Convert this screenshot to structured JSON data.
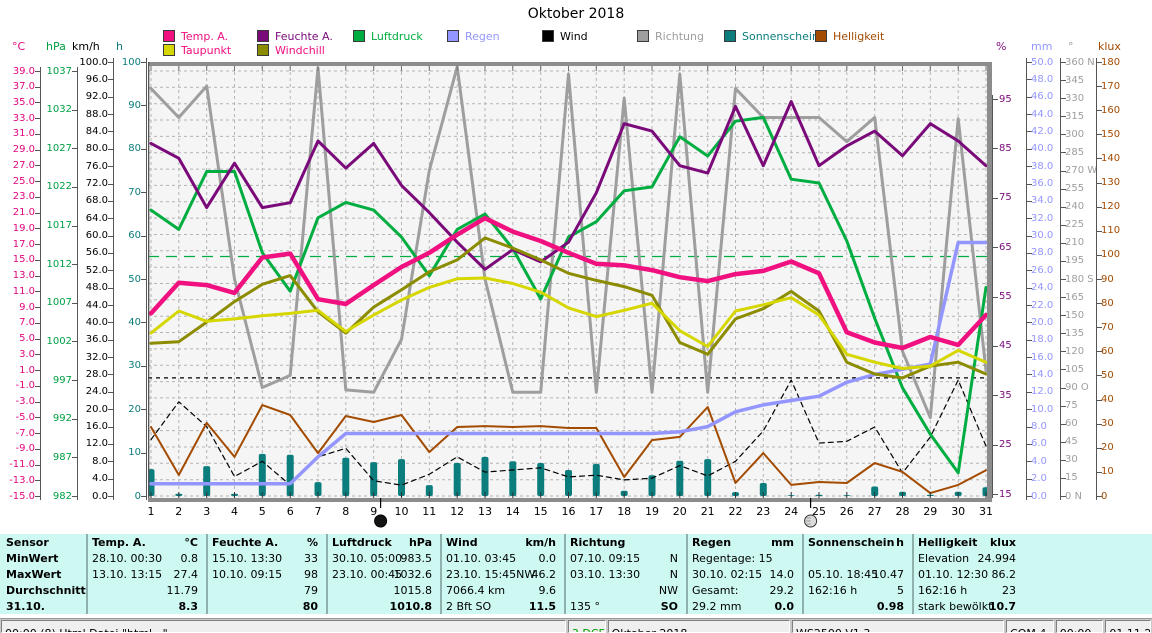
{
  "title": "Oktober 2018",
  "legend": {
    "rows": [
      [
        {
          "label": "Temp. A.",
          "color": "#f01080",
          "label_color": "#f01080"
        },
        {
          "label": "Feuchte A.",
          "color": "#7a0a7a",
          "label_color": "#7a0a7a"
        },
        {
          "label": "Luftdruck",
          "color": "#00ad41",
          "label_color": "#00ad41"
        },
        {
          "label": "Regen",
          "color": "#9496ff",
          "label_color": "#9496ff"
        },
        {
          "label": "Wind",
          "color": "#000000",
          "label_color": "#000000"
        },
        {
          "label": "Richtung",
          "color": "#9e9e9e",
          "label_color": "#9e9e9e"
        },
        {
          "label": "Sonnenschein",
          "color": "#0b7d7d",
          "label_color": "#0b7d7d"
        },
        {
          "label": "Helligkeit",
          "color": "#a34b00",
          "label_color": "#a34b00"
        }
      ],
      [
        {
          "label": "Taupunkt",
          "color": "#d6d600",
          "label_color": "#f01080"
        },
        {
          "label": "Windchill",
          "color": "#8c8c00",
          "label_color": "#f01080"
        }
      ]
    ]
  },
  "axes": {
    "left": [
      {
        "id": "C",
        "unit": "°C",
        "color": "#e0077e",
        "ticks": [
          "39.0",
          "37.0",
          "35.0",
          "33.0",
          "31.0",
          "29.0",
          "27.0",
          "25.0",
          "23.0",
          "21.0",
          "19.0",
          "17.0",
          "15.0",
          "13.0",
          "11.0",
          "9.0",
          "7.0",
          "5.0",
          "3.0",
          "1.0",
          "-1.0",
          "-3.0",
          "-5.0",
          "-7.0",
          "-9.0",
          "-11.0",
          "-13.0",
          "-15.0"
        ]
      },
      {
        "id": "hPa",
        "unit": "hPa",
        "color": "#00a044",
        "ticks": [
          "1037",
          "1032",
          "1027",
          "1022",
          "1017",
          "1012",
          "1007",
          "1002",
          "997",
          "992",
          "987",
          "982"
        ]
      },
      {
        "id": "kmh",
        "unit": "km/h",
        "color": "#000000",
        "ticks": [
          "100.0",
          "96.0",
          "92.0",
          "88.0",
          "84.0",
          "80.0",
          "76.0",
          "72.0",
          "68.0",
          "64.0",
          "60.0",
          "56.0",
          "52.0",
          "48.0",
          "44.0",
          "40.0",
          "36.0",
          "32.0",
          "28.0",
          "24.0",
          "20.0",
          "16.0",
          "12.0",
          "8.0",
          "4.0",
          "0.0"
        ]
      },
      {
        "id": "h",
        "unit": "h",
        "color": "#0b7d7d",
        "ticks": [
          "100",
          "90",
          "80",
          "70",
          "60",
          "50",
          "40",
          "30",
          "20",
          "10",
          "0"
        ]
      }
    ],
    "right": [
      {
        "id": "pct",
        "unit": "%",
        "color": "#7a0a7a",
        "ticks": [
          "95",
          "85",
          "75",
          "65",
          "55",
          "45",
          "35",
          "25",
          "15"
        ]
      },
      {
        "id": "mm",
        "unit": "mm",
        "color": "#9496ff",
        "ticks": [
          "50.0",
          "48.0",
          "46.0",
          "44.0",
          "42.0",
          "40.0",
          "38.0",
          "36.0",
          "34.0",
          "32.0",
          "30.0",
          "28.0",
          "26.0",
          "24.0",
          "22.0",
          "20.0",
          "18.0",
          "16.0",
          "14.0",
          "12.0",
          "10.0",
          "8.0",
          "6.0",
          "4.0",
          "2.0",
          "0.0"
        ]
      },
      {
        "id": "deg",
        "unit": "°",
        "color": "#9e9e9e",
        "ticks": [
          "360 N",
          "345",
          "330",
          "315",
          "300",
          "285",
          "270 W",
          "255",
          "240",
          "225",
          "210",
          "195",
          "180 S",
          "165",
          "150",
          "135",
          "120",
          "105",
          "90 O",
          "75",
          "60",
          "45",
          "30",
          "15",
          "0 N"
        ]
      },
      {
        "id": "klux",
        "unit": "klux",
        "color": "#a34b00",
        "ticks": [
          "180",
          "170",
          "160",
          "150",
          "140",
          "130",
          "120",
          "110",
          "100",
          "90",
          "80",
          "70",
          "60",
          "50",
          "40",
          "30",
          "20",
          "10",
          "0"
        ]
      }
    ]
  },
  "chart_data": {
    "type": "line",
    "title": "Oktober 2018",
    "x_labels": [
      "1",
      "2",
      "3",
      "4",
      "5",
      "6",
      "7",
      "8",
      "9",
      "10",
      "11",
      "12",
      "13",
      "14",
      "15",
      "16",
      "17",
      "18",
      "19",
      "20",
      "21",
      "22",
      "23",
      "24",
      "25",
      "26",
      "27",
      "28",
      "29",
      "30",
      "31"
    ],
    "axes_ranges": {
      "C": {
        "min": -15,
        "max": 39
      },
      "hPa": {
        "min": 982,
        "max": 1037
      },
      "kmh": {
        "min": 0,
        "max": 100
      },
      "h": {
        "min": 0,
        "max": 100
      },
      "pct": {
        "min": 15,
        "max": 95
      },
      "mm": {
        "min": 0,
        "max": 50
      },
      "deg": {
        "min": 0,
        "max": 360
      },
      "klux": {
        "min": 0,
        "max": 180
      }
    },
    "bars": {
      "name": "Sonnenschein",
      "axis": "h",
      "color": "#0b7d7d",
      "values": [
        6.2,
        0.5,
        6.9,
        0.5,
        9.7,
        9.5,
        3.2,
        8.8,
        7.8,
        8.5,
        2.5,
        7.6,
        9,
        8,
        7.6,
        6,
        7.4,
        1.2,
        4.8,
        8.1,
        8.5,
        0.9,
        3,
        0.2,
        0.3,
        0.2,
        2.2,
        1,
        0.3,
        1,
        2
      ]
    },
    "series": [
      {
        "name": "Richtung",
        "axis": "deg",
        "color": "#9e9e9e",
        "width": 3,
        "values": [
          338,
          314,
          340,
          180,
          90,
          100,
          355,
          88,
          86,
          130,
          270,
          356,
          180,
          86,
          86,
          350,
          86,
          330,
          86,
          350,
          86,
          338,
          314,
          314,
          314,
          294,
          314,
          120,
          65,
          313,
          104
        ]
      },
      {
        "name": "Wind",
        "axis": "kmh",
        "color": "#000000",
        "width": 1.2,
        "dash": "5 4",
        "values": [
          13,
          21.7,
          16,
          4.5,
          8,
          2.5,
          9,
          11,
          3.5,
          2.5,
          5,
          9,
          5.5,
          6,
          6.5,
          4.4,
          4.8,
          3.7,
          4.1,
          7,
          4.6,
          8,
          15,
          26.7,
          12.2,
          12.6,
          15.9,
          5.3,
          13.6,
          26.7,
          11.5
        ]
      },
      {
        "name": "Helligkeit",
        "axis": "klux",
        "color": "#a34b00",
        "width": 2,
        "values": [
          28.6,
          8.7,
          30.3,
          16.2,
          37.7,
          33.6,
          17.8,
          33.2,
          30.7,
          33.6,
          18.2,
          28.6,
          29,
          28.6,
          29,
          28.2,
          28.2,
          7.9,
          23.2,
          24.5,
          36.9,
          5.4,
          17.8,
          4.6,
          5.8,
          5.4,
          13.7,
          10,
          1.2,
          4.6,
          10.7
        ]
      },
      {
        "name": "Luftdruck",
        "axis": "hPa",
        "color": "#00ad41",
        "width": 3,
        "values": [
          1019,
          1016.5,
          1024,
          1024,
          1013.5,
          1008.5,
          1018,
          1020,
          1019,
          1015.5,
          1010.5,
          1016.5,
          1018.5,
          1014,
          1007.5,
          1015.5,
          1017.5,
          1021.5,
          1022,
          1028.5,
          1026,
          1030.5,
          1031,
          1023,
          1022.5,
          1015,
          1005,
          996,
          990,
          985,
          1009
        ]
      },
      {
        "name": "Feuchte A.",
        "axis": "pct",
        "color": "#7a0a7a",
        "width": 3,
        "values": [
          86,
          83,
          73,
          82,
          73,
          74,
          86.5,
          81,
          86,
          77.5,
          72,
          66,
          60.5,
          64.5,
          62,
          66,
          76,
          90,
          88.5,
          81.5,
          80,
          93.5,
          81.5,
          94.5,
          81.5,
          85.5,
          88.5,
          83.5,
          90,
          86.5,
          81.5
        ]
      },
      {
        "name": "Regen",
        "axis": "mm",
        "color": "#9496ff",
        "width": 3.5,
        "values": [
          1.4,
          1.4,
          1.4,
          1.4,
          1.4,
          1.4,
          4.5,
          7.2,
          7.2,
          7.2,
          7.2,
          7.2,
          7.2,
          7.2,
          7.2,
          7.2,
          7.2,
          7.2,
          7.2,
          7.4,
          8,
          9.7,
          10.5,
          11,
          11.5,
          13.1,
          14,
          14.6,
          15.2,
          29.2,
          29.2
        ]
      },
      {
        "name": "Windchill",
        "axis": "C",
        "color": "#8c8c00",
        "width": 3,
        "values": [
          4.4,
          4.6,
          7.1,
          9.7,
          11.9,
          13,
          8.4,
          5.7,
          9,
          11.2,
          13.5,
          15,
          17.8,
          16.5,
          15,
          13.3,
          12.4,
          11.6,
          10.5,
          4.5,
          3,
          7.5,
          8.8,
          11,
          8.5,
          2,
          0.5,
          0,
          1.5,
          2,
          0.5
        ]
      },
      {
        "name": "Taupunkt",
        "axis": "C",
        "color": "#d6d600",
        "width": 3,
        "values": [
          5.7,
          8.5,
          7.2,
          7.5,
          7.9,
          8.2,
          8.6,
          5.9,
          8,
          9.9,
          11.5,
          12.6,
          12.7,
          12,
          10.9,
          8.9,
          7.8,
          8.6,
          9.5,
          6,
          4,
          8.5,
          9.3,
          10.2,
          8,
          3,
          2,
          1.2,
          1.5,
          3.5,
          2
        ]
      },
      {
        "name": "Temp. A.",
        "axis": "C",
        "color": "#f01080",
        "width": 4.5,
        "values": [
          8.2,
          12.1,
          11.8,
          10.8,
          15.3,
          15.8,
          10,
          9.4,
          11.8,
          14.1,
          15.9,
          18.2,
          20.3,
          18.6,
          17.4,
          15.9,
          14.5,
          14.3,
          13.7,
          12.8,
          12.3,
          13.2,
          13.6,
          14.8,
          13.3,
          5.8,
          4.5,
          3.8,
          5.2,
          4.2,
          8
        ]
      }
    ],
    "reference_lines": [
      {
        "axis": "hPa",
        "value": 1013,
        "color": "#00ad41",
        "dash": "11 7"
      },
      {
        "axis": "C",
        "value": 0,
        "color": "#000000",
        "dash": "4 4"
      }
    ],
    "moon_markers": [
      {
        "day": 9.25,
        "phase": "new"
      },
      {
        "day": 24.7,
        "phase": "full"
      }
    ],
    "grid": true,
    "legend_position": "top"
  },
  "table": {
    "row_headers": [
      "Sensor",
      "MinWert",
      "MaxWert",
      "Durchschnitt",
      "31.10."
    ],
    "columns": [
      {
        "name": "Temp. A.",
        "unit": "°C",
        "min": [
          "28.10.  00:30",
          "0.8"
        ],
        "max": [
          "13.10.  13:15",
          "27.4"
        ],
        "avg": [
          "",
          "11.79"
        ],
        "last": [
          "",
          "8.3"
        ]
      },
      {
        "name": "Feuchte A.",
        "unit": "%",
        "min": [
          "15.10.  13:30",
          "33"
        ],
        "max": [
          "10.10.  09:15",
          "98"
        ],
        "avg": [
          "",
          "79"
        ],
        "last": [
          "",
          "80"
        ]
      },
      {
        "name": "Luftdruck",
        "unit": "hPa",
        "min": [
          "30.10.  05:00",
          "983.5"
        ],
        "max": [
          "23.10.  00:45",
          "1032.6"
        ],
        "avg": [
          "",
          "1015.8"
        ],
        "last": [
          "",
          "1010.8"
        ]
      },
      {
        "name": "Wind",
        "unit": "km/h",
        "min": [
          "01.10.  03:45",
          "0.0"
        ],
        "max": [
          "23.10.  15:45NW",
          "46.2"
        ],
        "avg": [
          "7066.4 km",
          "9.6"
        ],
        "last": [
          "2 Bft SO",
          "11.5"
        ]
      },
      {
        "name": "Richtung",
        "unit": "",
        "min": [
          "07.10.  09:15",
          "N"
        ],
        "max": [
          "03.10.  13:30",
          "N"
        ],
        "avg": [
          "",
          "NW"
        ],
        "last": [
          "135 °",
          "SO"
        ]
      },
      {
        "name": "Regen",
        "unit": "mm",
        "min": [
          "Regentage: 15",
          ""
        ],
        "max": [
          "30.10.  02:15",
          "14.0"
        ],
        "avg": [
          "Gesamt:",
          "29.2"
        ],
        "last": [
          "29.2 mm",
          "0.0"
        ]
      },
      {
        "name": "Sonnenschein",
        "unit": "h",
        "min": [
          "",
          ""
        ],
        "max": [
          "05.10.  18:45",
          "10.47"
        ],
        "avg": [
          "162:16 h",
          "5"
        ],
        "last": [
          "",
          "0.98"
        ]
      },
      {
        "name": "Helligkeit",
        "unit": "klux",
        "min": [
          "Elevation",
          "24.994"
        ],
        "max": [
          "01.10.  12:30",
          "86.2"
        ],
        "avg": [
          "162:16 h",
          "23"
        ],
        "last": [
          "stark bewölkt",
          "10.7"
        ]
      }
    ]
  },
  "statusbar": {
    "segments": [
      {
        "text": "00:00  (8) Html Datei \"html...\" ...",
        "color": "#000000"
      },
      {
        "text": "3 DCFS",
        "color": "#00a000"
      },
      {
        "text": "Oktober 2018",
        "color": "#000000"
      },
      {
        "text": "WS2500 V1.3",
        "color": "#000000"
      },
      {
        "text": "COM 4",
        "color": "#000000"
      },
      {
        "text": "00:00",
        "color": "#000000"
      },
      {
        "text": "01.11.2018",
        "color": "#000000"
      }
    ]
  }
}
